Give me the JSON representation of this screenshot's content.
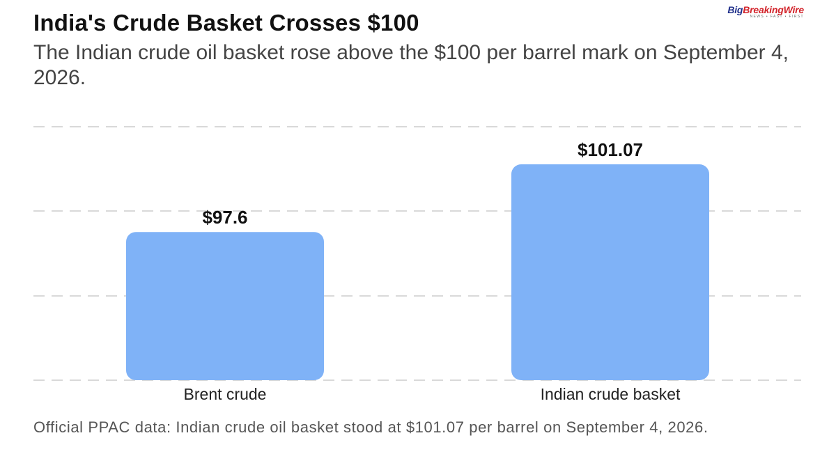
{
  "title": "India's Crude Basket Crosses $100",
  "subtitle": "The Indian crude oil basket rose above the $100 per barrel mark on September 4, 2026.",
  "logo": {
    "brand_part1": "Big",
    "brand_part2": "BreakingWire",
    "tagline": "NEWS • FAST • FIRST"
  },
  "footer": "Official PPAC data: Indian crude oil basket stood at $101.07 per barrel on September 4, 2026.",
  "chart_data": {
    "type": "bar",
    "categories": [
      "Brent crude",
      "Indian crude basket"
    ],
    "values": [
      97.6,
      101.07
    ],
    "data_labels": [
      "$97.6",
      "$101.07"
    ],
    "ylim": [
      90,
      103
    ],
    "grid": true,
    "bar_color": "#7fb2f7",
    "grid_color": "#d9d9d9"
  }
}
